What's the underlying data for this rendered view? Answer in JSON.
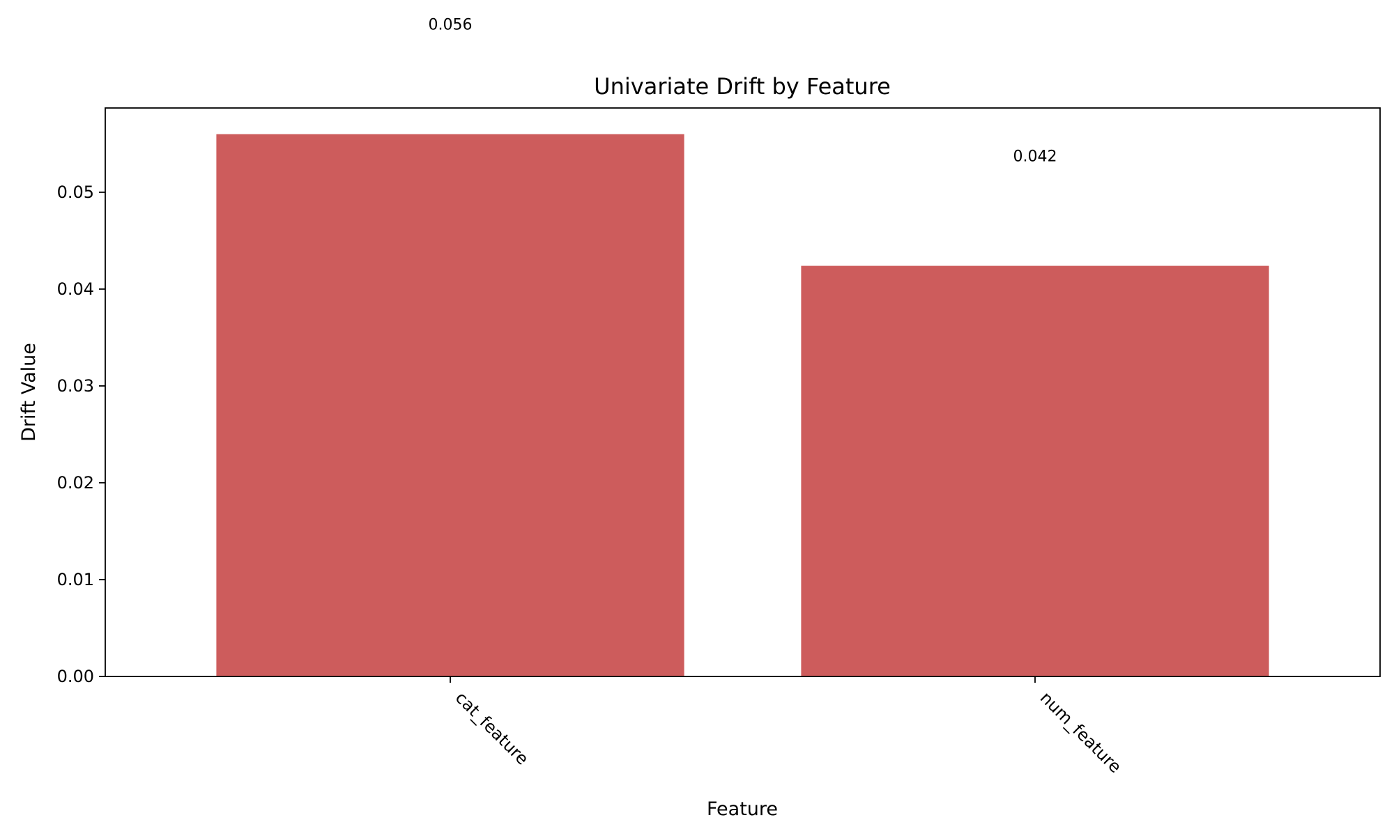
{
  "chart_data": {
    "type": "bar",
    "title": "Univariate Drift by Feature",
    "xlabel": "Feature",
    "ylabel": "Drift Value",
    "categories": [
      "cat_feature",
      "num_feature"
    ],
    "values": [
      0.056,
      0.0424
    ],
    "data_labels": [
      "0.056",
      "0.042"
    ],
    "ylim": [
      0,
      0.0587
    ],
    "yticks": [
      0.0,
      0.01,
      0.02,
      0.03,
      0.04,
      0.05
    ],
    "ytick_labels": [
      "0.00",
      "0.01",
      "0.02",
      "0.03",
      "0.04",
      "0.05"
    ],
    "bar_color": "#cd5c5c",
    "grid": false,
    "legend": "none"
  }
}
